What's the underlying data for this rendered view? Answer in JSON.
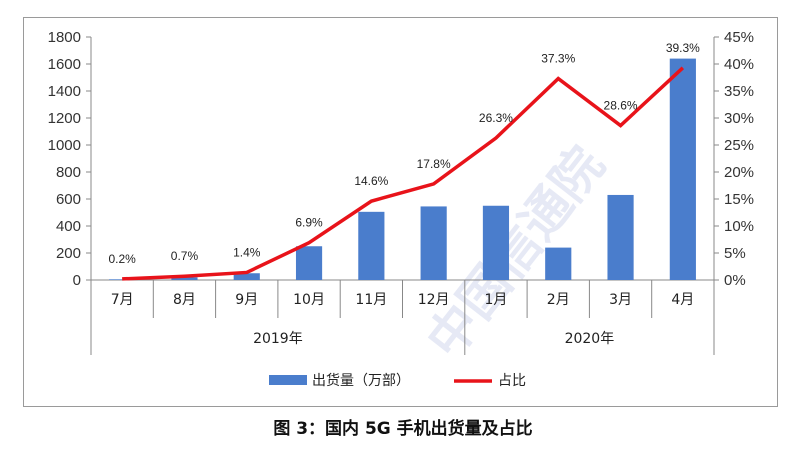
{
  "chart_data": {
    "type": "bar",
    "categories": [
      "7月",
      "8月",
      "9月",
      "10月",
      "11月",
      "12月",
      "1月",
      "2月",
      "3月",
      "4月"
    ],
    "series": [
      {
        "name": "出货量（万部）",
        "type": "bar",
        "axis": "left",
        "color": "#4a7dcc",
        "values": [
          5,
          20,
          50,
          250,
          505,
          545,
          550,
          240,
          630,
          1640
        ]
      },
      {
        "name": "占比",
        "type": "line",
        "axis": "right",
        "color": "#e8131a",
        "values": [
          0.2,
          0.7,
          1.4,
          6.9,
          14.6,
          17.8,
          26.3,
          37.3,
          28.6,
          39.3
        ],
        "labels": [
          "0.2%",
          "0.7%",
          "1.4%",
          "6.9%",
          "14.6%",
          "17.8%",
          "26.3%",
          "37.3%",
          "28.6%",
          "39.3%"
        ]
      }
    ],
    "y_left": {
      "min": 0,
      "max": 1800,
      "step": 200,
      "ticks": [
        "0",
        "200",
        "400",
        "600",
        "800",
        "1000",
        "1200",
        "1400",
        "1600",
        "1800"
      ]
    },
    "y_right": {
      "min": 0,
      "max": 45,
      "step": 5,
      "ticks": [
        "0%",
        "5%",
        "10%",
        "15%",
        "20%",
        "25%",
        "30%",
        "35%",
        "40%",
        "45%"
      ]
    },
    "year_groups": [
      {
        "label": "2019年",
        "start": 0,
        "end": 5
      },
      {
        "label": "2020年",
        "start": 6,
        "end": 9
      }
    ],
    "legend": {
      "position": "bottom",
      "bar_label": "出货量（万部）",
      "line_label": "占比"
    },
    "title": "图 3：国内 5G 手机出货量及占比"
  },
  "watermark": "中国信通院"
}
